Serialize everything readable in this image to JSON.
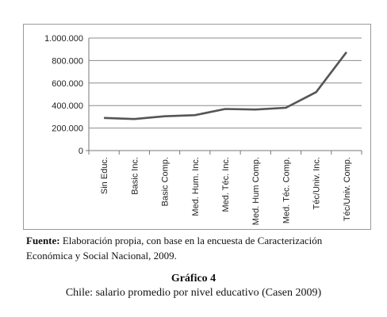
{
  "chart_data": {
    "type": "line",
    "categories": [
      "Sin Educ.",
      "Basic Inc.",
      "Basic Comp.",
      "Med. Hum. Inc.",
      "Med. Téc. Inc.",
      "Med. Hum Comp.",
      "Med. Téc. Comp.",
      "Téc/Univ. Inc.",
      "Téc/Univ. Comp."
    ],
    "series": [
      {
        "values": [
          290000,
          280000,
          305000,
          315000,
          370000,
          365000,
          380000,
          520000,
          875000
        ]
      }
    ],
    "ylim": [
      0,
      1000000
    ],
    "yticks": [
      0,
      200000,
      400000,
      600000,
      800000,
      1000000
    ],
    "ytick_labels": [
      "0",
      "200.000",
      "400.000",
      "600.000",
      "800.000",
      "1.000.000"
    ],
    "grid": "horizontal",
    "line_color": "#555555"
  },
  "source": {
    "label": "Fuente:",
    "text": " Elaboración propia, con base en la encuesta de Caracterización Económica y Social Nacional, 2009."
  },
  "figure": {
    "label": "Gráfico 4",
    "caption": "Chile: salario promedio por nivel educativo (Casen 2009)"
  }
}
